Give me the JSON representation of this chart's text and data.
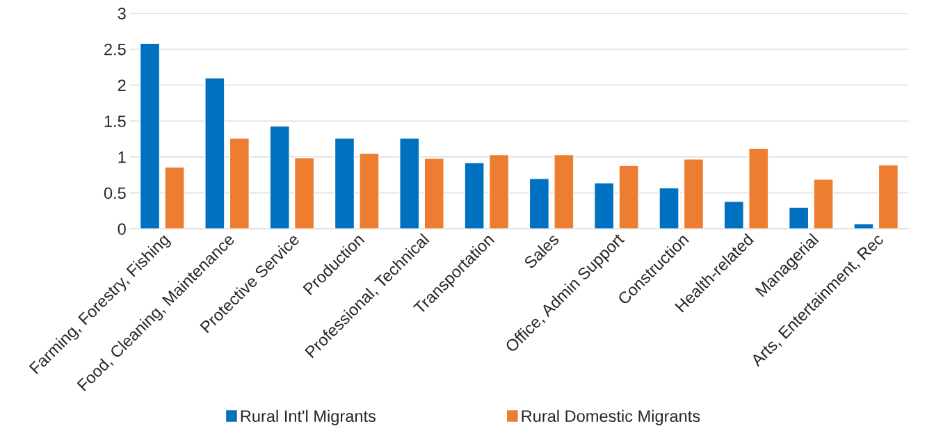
{
  "chart_data": {
    "type": "bar",
    "categories": [
      "Farming, Forestry, Fishing",
      "Food, Cleaning, Maintenance",
      "Protective Service",
      "Production",
      "Professional, Technical",
      "Transportation",
      "Sales",
      "Office, Admin Support",
      "Construction",
      "Health-related",
      "Managerial",
      "Arts, Entertainment, Rec"
    ],
    "series": [
      {
        "name": "Rural Int'l Migrants",
        "color": "#0070c0",
        "values": [
          2.58,
          2.1,
          1.43,
          1.26,
          1.26,
          0.92,
          0.7,
          0.64,
          0.57,
          0.38,
          0.3,
          0.07
        ]
      },
      {
        "name": "Rural Domestic Migrants",
        "color": "#ed7d31",
        "values": [
          0.86,
          1.26,
          0.99,
          1.05,
          0.98,
          1.03,
          1.03,
          0.88,
          0.97,
          1.12,
          0.69,
          0.89
        ]
      }
    ],
    "ylim": [
      0,
      3
    ],
    "yticks": [
      0,
      {
        "value": 0.5,
        "label": "0.5"
      },
      1,
      {
        "value": 1.5,
        "label": "1.5"
      },
      2,
      {
        "value": 2.5,
        "label": "2.5"
      },
      3
    ],
    "grid": "y",
    "legend": "bottom"
  }
}
